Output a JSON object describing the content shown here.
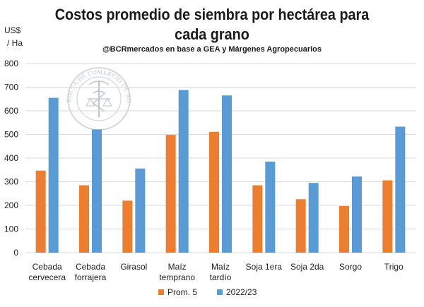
{
  "chart_data": {
    "type": "bar",
    "title_line1": "Costos promedio de siembra por hectárea para",
    "title_line2": "cada grano",
    "subtitle": "@BCRmercados en base a GEA y Márgenes Agropecuarios",
    "ylabel_line1": "US$",
    "ylabel_line2": "/ Ha",
    "ylim": [
      0,
      800
    ],
    "yticks": [
      0,
      100,
      200,
      300,
      400,
      500,
      600,
      700,
      800
    ],
    "categories": [
      [
        "Cebada",
        "cervecera"
      ],
      [
        "Cebada",
        "forrajera"
      ],
      [
        "Girasol"
      ],
      [
        "Maíz",
        "temprano"
      ],
      [
        "Maíz",
        "tardío"
      ],
      [
        "Soja 1era"
      ],
      [
        "Soja 2da"
      ],
      [
        "Sorgo"
      ],
      [
        "Trigo"
      ]
    ],
    "series": [
      {
        "name": "Prom. 5",
        "color": "#ed7d31",
        "values": [
          347,
          285,
          220,
          498,
          511,
          285,
          226,
          197,
          306
        ]
      },
      {
        "name": "2022/23",
        "color": "#5b9bd5",
        "values": [
          655,
          521,
          356,
          688,
          665,
          385,
          295,
          322,
          533
        ]
      }
    ],
    "legend_position": "bottom-center",
    "watermark_text": "BOLSA DE COMERCIO DE ROSARIO"
  }
}
